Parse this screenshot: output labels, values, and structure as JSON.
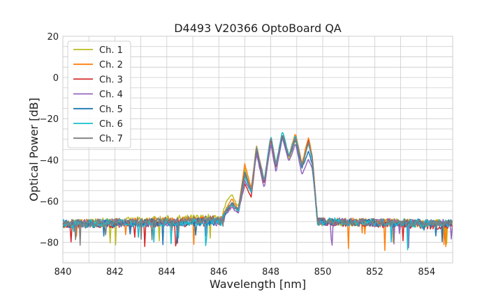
{
  "chart_data": {
    "type": "line",
    "title": "D4493 V20366 OptoBoard QA",
    "xlabel": "Wavelength [nm]",
    "ylabel": "Optical Power [dB]",
    "xlim": [
      840,
      855
    ],
    "ylim": [
      -90,
      20
    ],
    "xticks": [
      840,
      842,
      844,
      846,
      848,
      850,
      852,
      854
    ],
    "yticks": [
      20,
      0,
      -20,
      -40,
      -60,
      -80
    ],
    "xtick_labels": [
      "840",
      "842",
      "844",
      "846",
      "848",
      "850",
      "852",
      "854"
    ],
    "ytick_labels": [
      "20",
      "0",
      "−20",
      "−40",
      "−60",
      "−80"
    ],
    "grid": true,
    "legend_position": "top-left",
    "noise_floor_db": -71,
    "series": [
      {
        "name": "Ch. 1",
        "color": "#bcbd22",
        "x": [
          840,
          846.1,
          846.3,
          846.5,
          846.75,
          847.0,
          847.25,
          847.45,
          847.75,
          848.0,
          848.2,
          848.45,
          848.7,
          848.95,
          849.2,
          849.45,
          849.6,
          849.8,
          855
        ],
        "y": [
          -71,
          -68,
          -60,
          -57,
          -63,
          -44,
          -56,
          -34,
          -52,
          -30,
          -44,
          -28,
          -40,
          -30,
          -44,
          -31,
          -40,
          -70,
          -71
        ]
      },
      {
        "name": "Ch. 2",
        "color": "#ff7f0e",
        "x": [
          840,
          846.1,
          846.3,
          846.5,
          846.75,
          847.0,
          847.25,
          847.45,
          847.75,
          848.0,
          848.2,
          848.45,
          848.7,
          848.95,
          849.2,
          849.45,
          849.6,
          849.8,
          855
        ],
        "y": [
          -71,
          -69,
          -63,
          -59,
          -64,
          -42,
          -54,
          -33,
          -50,
          -29,
          -42,
          -28,
          -38,
          -27,
          -42,
          -29,
          -38,
          -70,
          -71
        ]
      },
      {
        "name": "Ch. 3",
        "color": "#d62728",
        "x": [
          840,
          846.1,
          846.3,
          846.5,
          846.75,
          847.0,
          847.25,
          847.45,
          847.75,
          848.0,
          848.2,
          848.45,
          848.7,
          848.95,
          849.2,
          849.45,
          849.6,
          849.8,
          855
        ],
        "y": [
          -72,
          -70,
          -65,
          -62,
          -65,
          -52,
          -58,
          -36,
          -52,
          -30,
          -44,
          -28,
          -39,
          -29,
          -43,
          -31,
          -40,
          -70,
          -72
        ]
      },
      {
        "name": "Ch. 4",
        "color": "#9467bd",
        "x": [
          840,
          846.1,
          846.3,
          846.5,
          846.75,
          847.0,
          847.25,
          847.45,
          847.75,
          848.0,
          848.2,
          848.45,
          848.7,
          848.95,
          849.2,
          849.45,
          849.6,
          849.8,
          855
        ],
        "y": [
          -71,
          -70,
          -66,
          -63,
          -66,
          -50,
          -56,
          -37,
          -54,
          -32,
          -46,
          -29,
          -41,
          -32,
          -47,
          -40,
          -44,
          -70,
          -71
        ]
      },
      {
        "name": "Ch. 5",
        "color": "#1f77b4",
        "x": [
          840,
          846.1,
          846.3,
          846.5,
          846.75,
          847.0,
          847.25,
          847.45,
          847.75,
          848.0,
          848.2,
          848.45,
          848.7,
          848.95,
          849.2,
          849.45,
          849.6,
          849.8,
          855
        ],
        "y": [
          -71,
          -70,
          -65,
          -61,
          -64,
          -46,
          -55,
          -35,
          -51,
          -29,
          -43,
          -28,
          -39,
          -30,
          -44,
          -36,
          -42,
          -70,
          -71
        ]
      },
      {
        "name": "Ch. 6",
        "color": "#17becf",
        "x": [
          840,
          846.1,
          846.3,
          846.5,
          846.75,
          847.0,
          847.25,
          847.45,
          847.75,
          848.0,
          848.2,
          848.45,
          848.7,
          848.95,
          849.2,
          849.45,
          849.6,
          849.8,
          855
        ],
        "y": [
          -71,
          -70,
          -64,
          -62,
          -65,
          -48,
          -56,
          -34,
          -50,
          -28,
          -42,
          -26,
          -38,
          -28,
          -43,
          -32,
          -40,
          -70,
          -71
        ]
      },
      {
        "name": "Ch. 7",
        "color": "#7f7f7f",
        "x": [
          840,
          846.1,
          846.3,
          846.5,
          846.75,
          847.0,
          847.25,
          847.45,
          847.75,
          848.0,
          848.2,
          848.45,
          848.7,
          848.95,
          849.2,
          849.45,
          849.6,
          849.8,
          855
        ],
        "y": [
          -71,
          -69,
          -64,
          -61,
          -64,
          -47,
          -55,
          -34,
          -51,
          -29,
          -43,
          -27,
          -39,
          -29,
          -43,
          -31,
          -39,
          -70,
          -71
        ]
      }
    ]
  }
}
